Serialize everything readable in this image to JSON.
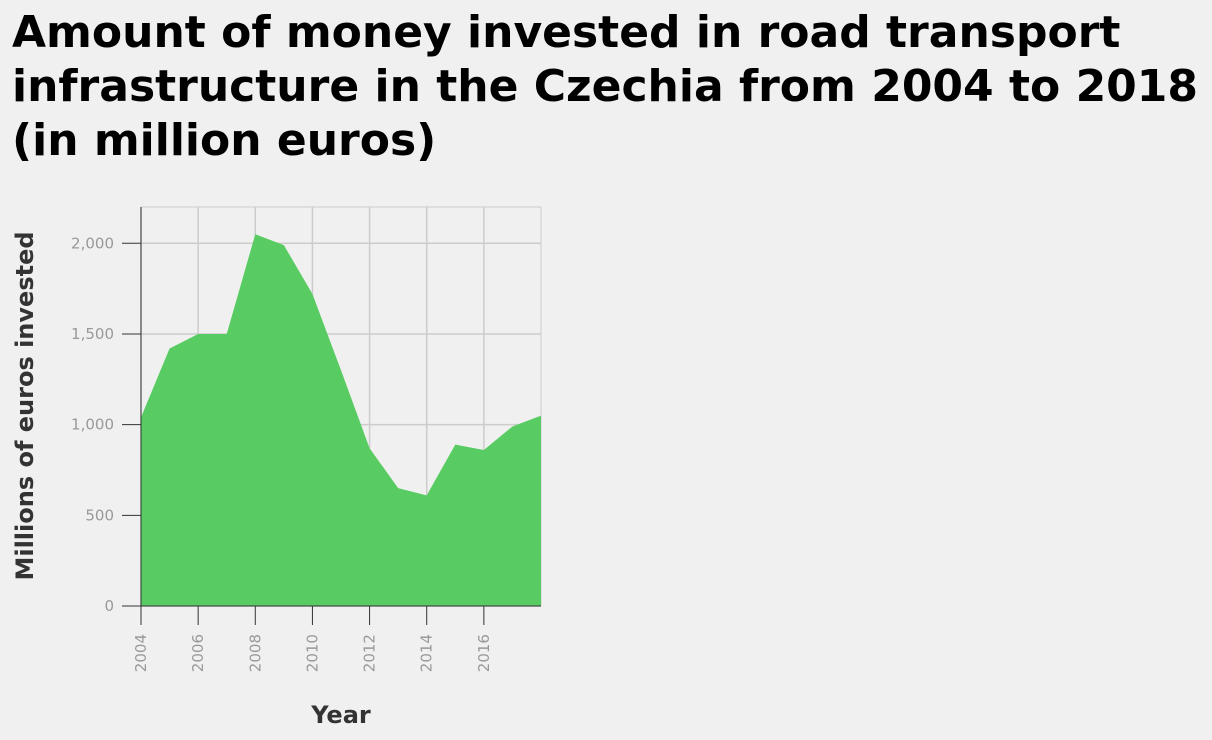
{
  "chart_data": {
    "type": "area",
    "title": "Amount of money invested in road transport infrastructure in the Czechia from 2004 to 2018 (in million euros)",
    "xlabel": "Year",
    "ylabel": "Millions of euros invested",
    "x": [
      2004,
      2005,
      2006,
      2007,
      2008,
      2009,
      2010,
      2011,
      2012,
      2013,
      2014,
      2015,
      2016,
      2017,
      2018
    ],
    "values": [
      1040,
      1420,
      1500,
      1500,
      2050,
      1990,
      1720,
      1300,
      870,
      650,
      610,
      890,
      860,
      990,
      1050
    ],
    "xlim": [
      2004,
      2018
    ],
    "ylim": [
      0,
      2200
    ],
    "x_ticks": [
      "2004",
      "2006",
      "2008",
      "2010",
      "2012",
      "2014",
      "2016"
    ],
    "y_ticks": [
      "0",
      "500",
      "1,000",
      "1,500",
      "2,000"
    ],
    "grid": true,
    "colors": {
      "area": "#58cc62",
      "grid": "#cccccc",
      "background": "#f0f0f0"
    }
  }
}
